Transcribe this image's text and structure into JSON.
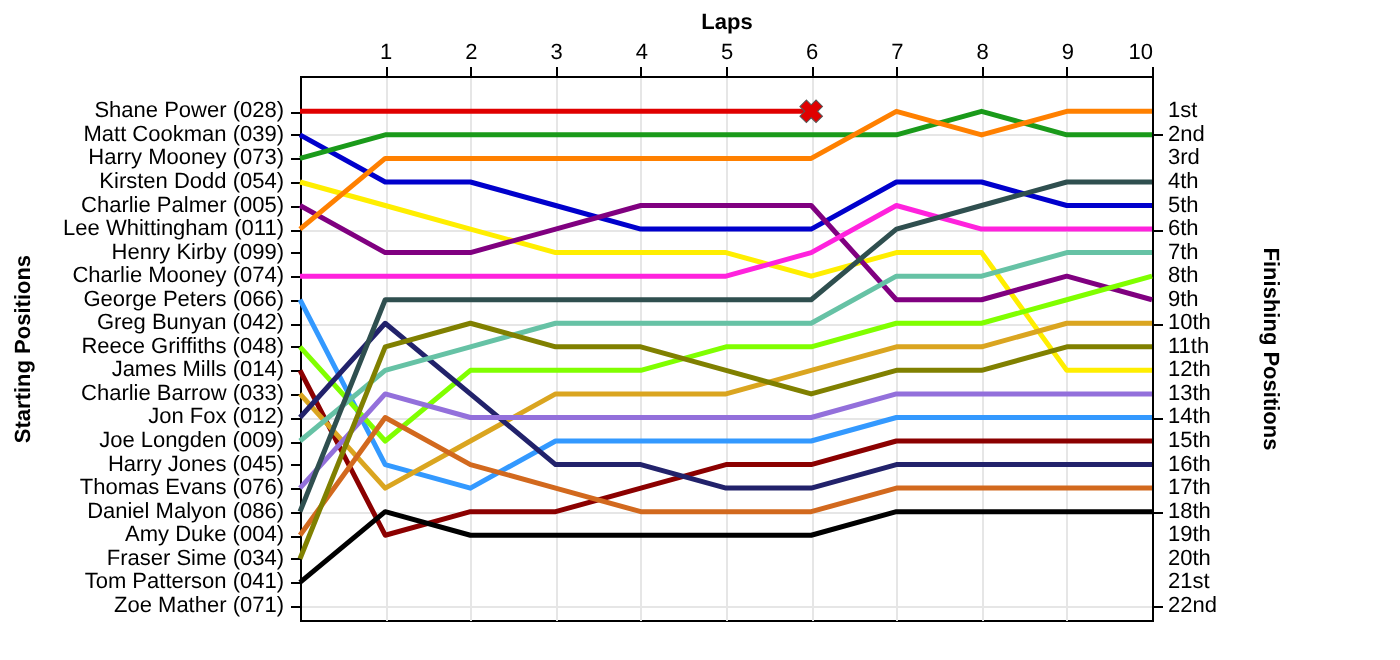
{
  "chart_data": {
    "type": "line",
    "xlabel": "Laps",
    "ylabel": "Finishing Positions",
    "x": [
      0,
      1,
      2,
      3,
      4,
      5,
      6,
      7,
      8,
      9,
      10
    ],
    "xlim": [
      0,
      10
    ],
    "xticks": [
      1,
      2,
      3,
      4,
      5,
      6,
      7,
      8,
      9,
      10
    ],
    "ylim": [
      22.6,
      -0.5
    ],
    "yticks": [
      {
        "value": 1,
        "label": "1st"
      },
      {
        "value": 2,
        "label": "2nd"
      },
      {
        "value": 3,
        "label": "3rd"
      },
      {
        "value": 4,
        "label": "4th"
      },
      {
        "value": 5,
        "label": "5th"
      },
      {
        "value": 6,
        "label": "6th"
      },
      {
        "value": 7,
        "label": "7th"
      },
      {
        "value": 8,
        "label": "8th"
      },
      {
        "value": 9,
        "label": "9th"
      },
      {
        "value": 10,
        "label": "10th"
      },
      {
        "value": 11,
        "label": "11th"
      },
      {
        "value": 12,
        "label": "12th"
      },
      {
        "value": 13,
        "label": "13th"
      },
      {
        "value": 14,
        "label": "14th"
      },
      {
        "value": 15,
        "label": "15th"
      },
      {
        "value": 16,
        "label": "16th"
      },
      {
        "value": 17,
        "label": "17th"
      },
      {
        "value": 18,
        "label": "18th"
      },
      {
        "value": 19,
        "label": "19th"
      },
      {
        "value": 20,
        "label": "20th"
      },
      {
        "value": 21,
        "label": "21st"
      },
      {
        "value": 22,
        "label": "22nd"
      }
    ],
    "annotations": [
      "Starting Positions",
      "Shane Power (028)",
      "Matt Cookman (039)",
      "Harry Mooney (073)",
      "Kirsten Dodd (054)",
      "Charlie Palmer (005)",
      "Lee Whittingham (011)",
      "Henry Kirby (099)",
      "Charlie Mooney (074)",
      "George Peters (066)",
      "Greg Bunyan (042)",
      "Reece Griffiths (048)",
      "James Mills (014)",
      "Charlie Barrow (033)",
      "Jon Fox (012)",
      "Joe Longden (009)",
      "Harry Jones (045)",
      "Thomas Evans (076)",
      "Daniel Malyon (086)",
      "Amy Duke (004)",
      "Fraser Sime (034)",
      "Tom Patterson (041)",
      "Zoe Mather (071)"
    ],
    "grid": true,
    "legend": false,
    "line_style": "solid",
    "series": [
      {
        "color": "#e00000",
        "values": [
          1,
          1,
          1,
          1,
          1,
          1,
          1,
          null,
          null,
          null,
          null
        ]
      },
      {
        "type": "scatter",
        "marker": "cross",
        "color": "#e00000",
        "x": [
          6
        ],
        "values": [
          1
        ]
      },
      {
        "color": "#0000cc",
        "values": [
          2,
          4,
          4,
          5,
          6,
          6,
          6,
          4,
          4,
          5,
          5
        ]
      },
      {
        "color": "#1a9a1a",
        "values": [
          3,
          2,
          2,
          2,
          2,
          2,
          2,
          2,
          1,
          2,
          2
        ]
      },
      {
        "color": "#ffee00",
        "values": [
          4,
          5,
          6,
          7,
          7,
          7,
          8,
          7,
          7,
          12,
          12
        ]
      },
      {
        "color": "#800080",
        "values": [
          5,
          7,
          7,
          6,
          5,
          5,
          5,
          9,
          9,
          8,
          9
        ]
      },
      {
        "color": "#ff8000",
        "values": [
          6,
          3,
          3,
          3,
          3,
          3,
          3,
          1,
          2,
          1,
          1
        ]
      },
      {
        "color": "#ff22dd",
        "values": [
          8,
          8,
          8,
          8,
          8,
          8,
          7,
          5,
          6,
          6,
          6
        ]
      },
      {
        "color": "#3399ff",
        "values": [
          9,
          16,
          17,
          15,
          15,
          15,
          15,
          14,
          14,
          14,
          14
        ]
      },
      {
        "color": "#80ff00",
        "values": [
          11,
          15,
          12,
          12,
          12,
          11,
          11,
          10,
          10,
          9,
          8
        ]
      },
      {
        "color": "#8b0000",
        "values": [
          12,
          19,
          18,
          18,
          17,
          16,
          16,
          15,
          15,
          15,
          15
        ]
      },
      {
        "color": "#daa520",
        "values": [
          13,
          17,
          15,
          13,
          13,
          13,
          12,
          11,
          11,
          10,
          10
        ]
      },
      {
        "color": "#22226b",
        "values": [
          14,
          10,
          13,
          16,
          16,
          17,
          17,
          16,
          16,
          16,
          16
        ]
      },
      {
        "color": "#66c2a5",
        "values": [
          15,
          12,
          11,
          10,
          10,
          10,
          10,
          8,
          8,
          7,
          7
        ]
      },
      {
        "color": "#9370db",
        "values": [
          17,
          13,
          14,
          14,
          14,
          14,
          14,
          13,
          13,
          13,
          13
        ]
      },
      {
        "color": "#2f4f4f",
        "values": [
          18,
          9,
          9,
          9,
          9,
          9,
          9,
          6,
          5,
          4,
          4
        ]
      },
      {
        "color": "#d2691e",
        "values": [
          19,
          14,
          16,
          17,
          18,
          18,
          18,
          17,
          17,
          17,
          17
        ]
      },
      {
        "color": "#808000",
        "values": [
          20,
          11,
          10,
          11,
          11,
          12,
          13,
          12,
          12,
          11,
          11
        ]
      },
      {
        "color": "#000000",
        "values": [
          21,
          18,
          19,
          19,
          19,
          19,
          19,
          18,
          18,
          18,
          18
        ]
      }
    ]
  }
}
